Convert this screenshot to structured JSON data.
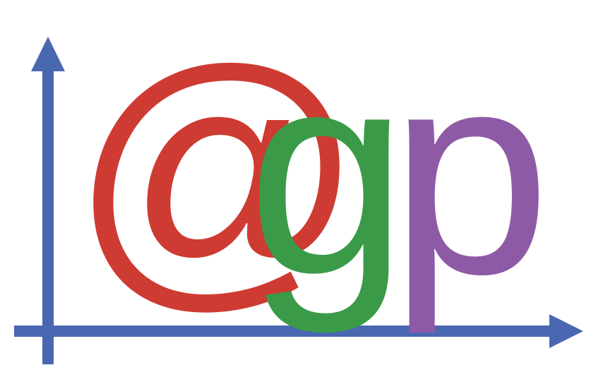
{
  "logo": {
    "text": "@gp",
    "at_symbol": "@",
    "letter_g": "g",
    "letter_p": "p",
    "colors": {
      "axis": "#4A67B1",
      "at_symbol": "#CD3B32",
      "letter_g": "#3A9A48",
      "letter_p": "#8E5AA6",
      "background": "#FFFFFF"
    },
    "icons": {
      "y_axis": "up-arrow-axis-icon",
      "x_axis": "right-arrow-axis-icon"
    }
  }
}
